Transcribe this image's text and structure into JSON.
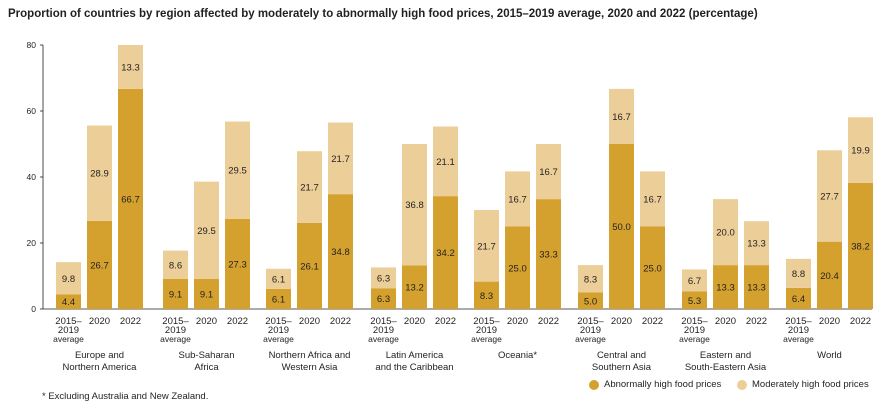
{
  "title": "Proportion of countries by region affected by moderately to abnormally high food prices, 2015–2019 average, 2020 and 2022 (percentage)",
  "footnote": "* Excluding Australia and New Zealand.",
  "colors": {
    "abnormal": "#d4a12e",
    "moderate": "#ecce98",
    "axis": "#231f20"
  },
  "chart_data": {
    "type": "bar",
    "stacked": true,
    "title": "Proportion of countries by region affected by moderately to abnormally high food prices, 2015–2019 average, 2020 and 2022 (percentage)",
    "ylim": [
      0,
      80
    ],
    "yticks": [
      0,
      20,
      40,
      60,
      80
    ],
    "grid": false,
    "legend_position": "bottom-right",
    "bar_labels": [
      [
        "2015–",
        "2019",
        "average"
      ],
      [
        "2020"
      ],
      [
        "2022"
      ]
    ],
    "series": [
      {
        "name": "Abnormally high food prices",
        "key": "abnormal"
      },
      {
        "name": "Moderately high food prices",
        "key": "moderate"
      }
    ],
    "groups": [
      {
        "label": [
          "Europe and",
          "Northern America"
        ],
        "abnormal": [
          4.4,
          26.7,
          66.7
        ],
        "moderate": [
          9.8,
          28.9,
          13.3
        ]
      },
      {
        "label": [
          "Sub-Saharan",
          "Africa"
        ],
        "abnormal": [
          9.1,
          9.1,
          27.3
        ],
        "moderate": [
          8.6,
          29.5,
          29.5
        ]
      },
      {
        "label": [
          "Northern Africa and",
          "Western Asia"
        ],
        "abnormal": [
          6.1,
          26.1,
          34.8
        ],
        "moderate": [
          6.1,
          21.7,
          21.7
        ]
      },
      {
        "label": [
          "Latin America",
          "and the Caribbean"
        ],
        "abnormal": [
          6.3,
          13.2,
          34.2
        ],
        "moderate": [
          6.3,
          36.8,
          21.1
        ]
      },
      {
        "label": [
          "Oceania*"
        ],
        "abnormal": [
          8.3,
          25.0,
          33.3
        ],
        "moderate": [
          21.7,
          16.7,
          16.7
        ]
      },
      {
        "label": [
          "Central and",
          "Southern Asia"
        ],
        "abnormal": [
          5.0,
          50.0,
          25.0
        ],
        "moderate": [
          8.3,
          16.7,
          16.7
        ]
      },
      {
        "label": [
          "Eastern and",
          "South-Eastern Asia"
        ],
        "abnormal": [
          5.3,
          13.3,
          13.3
        ],
        "moderate": [
          6.7,
          20.0,
          13.3
        ]
      },
      {
        "label": [
          "World"
        ],
        "abnormal": [
          6.4,
          20.4,
          38.2
        ],
        "moderate": [
          8.8,
          27.7,
          19.9
        ]
      }
    ]
  }
}
